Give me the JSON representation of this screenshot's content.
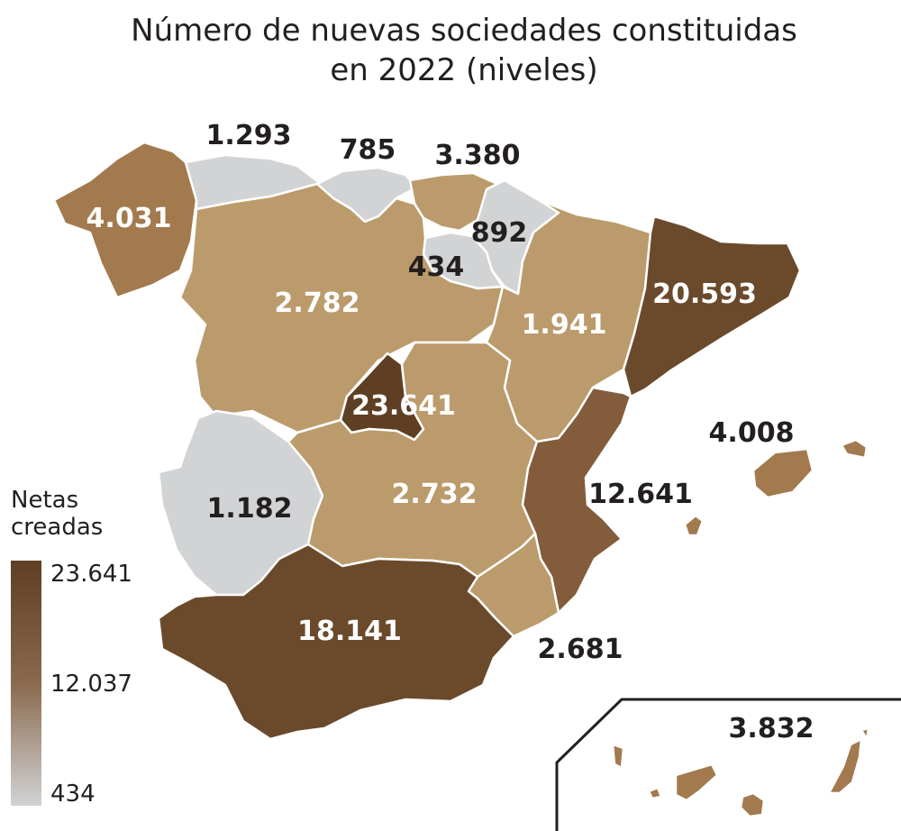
{
  "title": {
    "line1": "Número de nuevas sociedades constituidas",
    "line2": "en 2022 (niveles)"
  },
  "legend": {
    "title_line1": "Netas",
    "title_line2": "creadas",
    "max_label": "23.641",
    "mid_label": "12.037",
    "min_label": "434",
    "colors": {
      "max": "#5e3f24",
      "mid": "#8a6a4e",
      "min": "#d2d3d5"
    }
  },
  "regions": [
    {
      "id": "galicia",
      "label": "4.031",
      "value": 4031,
      "color": "#a27a4e"
    },
    {
      "id": "asturias",
      "label": "1.293",
      "value": 1293,
      "color": "#d2d3d5"
    },
    {
      "id": "cantabria",
      "label": "785",
      "value": 785,
      "color": "#d2d3d5"
    },
    {
      "id": "pais-vasco",
      "label": "3.380",
      "value": 3380,
      "color": "#bb9b6c"
    },
    {
      "id": "navarra",
      "label": "892",
      "value": 892,
      "color": "#d2d3d5"
    },
    {
      "id": "la-rioja",
      "label": "434",
      "value": 434,
      "color": "#d2d3d5"
    },
    {
      "id": "castilla-y-leon",
      "label": "2.782",
      "value": 2782,
      "color": "#bb9b6c"
    },
    {
      "id": "aragon",
      "label": "1.941",
      "value": 1941,
      "color": "#bb9b6c"
    },
    {
      "id": "cataluna",
      "label": "20.593",
      "value": 20593,
      "color": "#6b4a2c"
    },
    {
      "id": "madrid",
      "label": "23.641",
      "value": 23641,
      "color": "#5e3f24"
    },
    {
      "id": "extremadura",
      "label": "1.182",
      "value": 1182,
      "color": "#d2d3d5"
    },
    {
      "id": "castilla-la-mancha",
      "label": "2.732",
      "value": 2732,
      "color": "#bb9b6c"
    },
    {
      "id": "comunidad-valenciana",
      "label": "12.641",
      "value": 12641,
      "color": "#825c3b"
    },
    {
      "id": "murcia",
      "label": "2.681",
      "value": 2681,
      "color": "#bb9b6c"
    },
    {
      "id": "andalucia",
      "label": "18.141",
      "value": 18141,
      "color": "#6b4a2c"
    },
    {
      "id": "baleares",
      "label": "4.008",
      "value": 4008,
      "color": "#a27a4e"
    },
    {
      "id": "canarias",
      "label": "3.832",
      "value": 3832,
      "color": "#a27a4e"
    }
  ]
}
